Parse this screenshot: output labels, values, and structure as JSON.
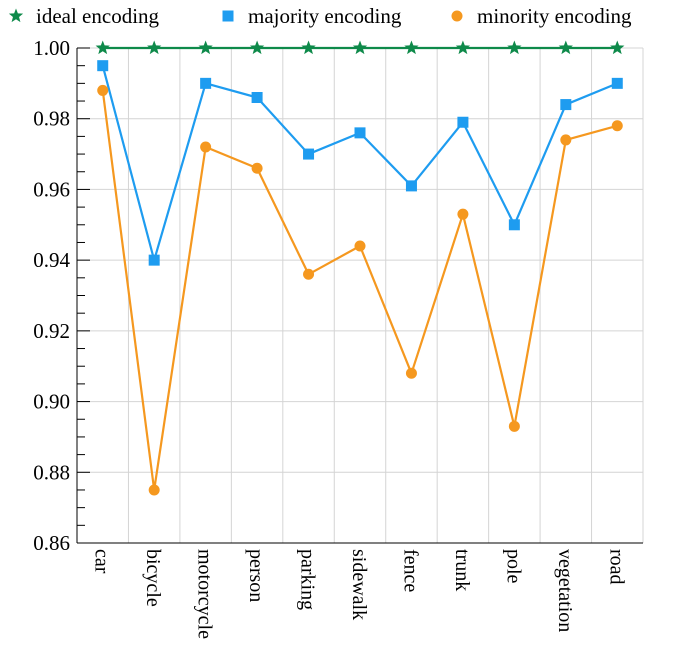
{
  "chart_data": {
    "type": "line",
    "title": "",
    "xlabel": "",
    "ylabel": "",
    "categories": [
      "car",
      "bicycle",
      "motorcycle",
      "person",
      "parking",
      "sidewalk",
      "fence",
      "trunk",
      "pole",
      "vegetation",
      "road"
    ],
    "ylim": [
      0.86,
      1.0
    ],
    "yticks": [
      "0.86",
      "0.88",
      "0.90",
      "0.92",
      "0.94",
      "0.96",
      "0.98",
      "1.00"
    ],
    "grid": true,
    "legend_position": "top",
    "series": [
      {
        "name": "ideal encoding",
        "marker": "star",
        "color": "#0e8a4a",
        "values": [
          1.0,
          1.0,
          1.0,
          1.0,
          1.0,
          1.0,
          1.0,
          1.0,
          1.0,
          1.0,
          1.0
        ]
      },
      {
        "name": "majority encoding",
        "marker": "square",
        "color": "#1e9cf0",
        "values": [
          0.995,
          0.94,
          0.99,
          0.986,
          0.97,
          0.976,
          0.961,
          0.979,
          0.95,
          0.984,
          0.99
        ]
      },
      {
        "name": "minority encoding",
        "marker": "circle",
        "color": "#f5981f",
        "values": [
          0.988,
          0.875,
          0.972,
          0.966,
          0.936,
          0.944,
          0.908,
          0.953,
          0.893,
          0.974,
          0.978
        ]
      }
    ]
  }
}
